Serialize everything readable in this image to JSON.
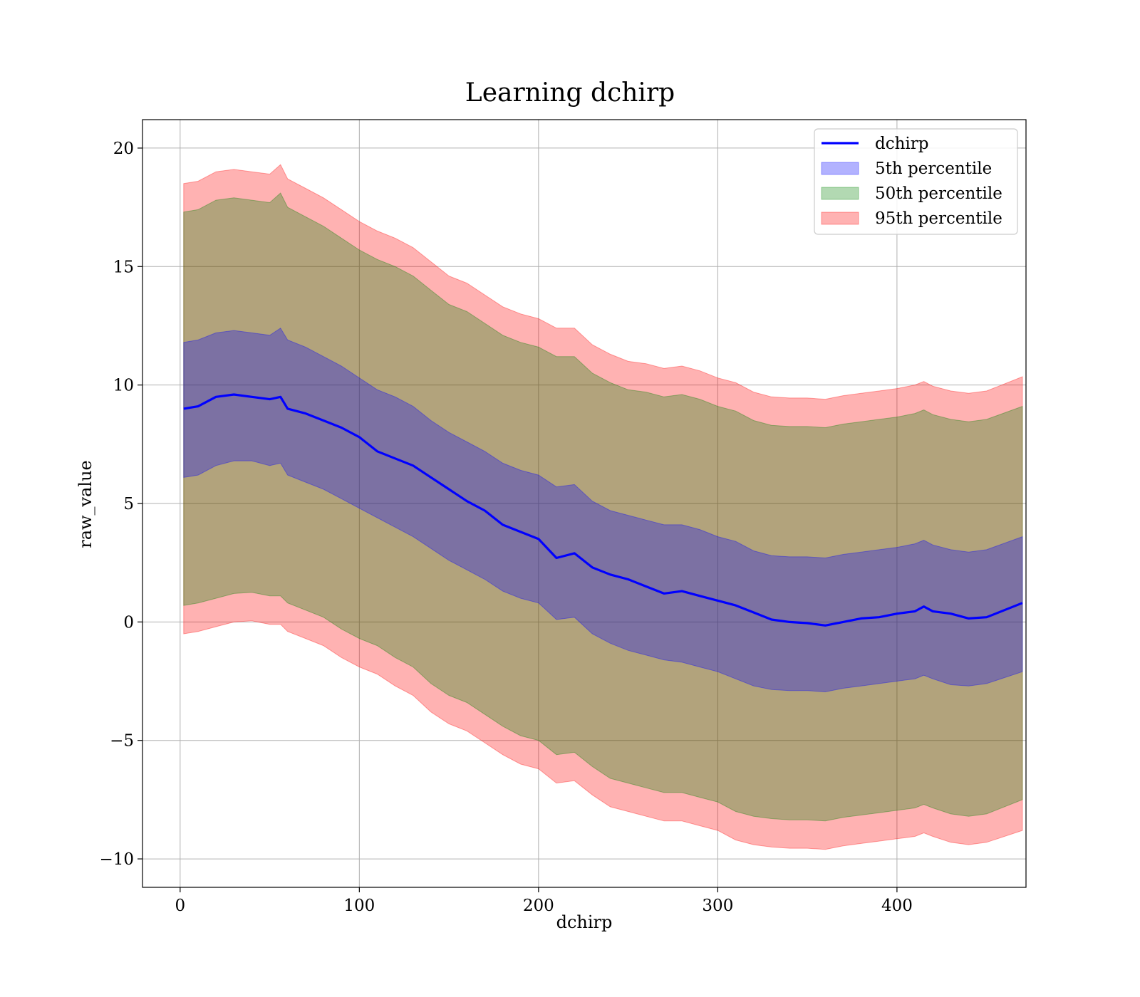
{
  "chart_data": {
    "type": "area",
    "title": "Learning dchirp",
    "xlabel": "dchirp",
    "ylabel": "raw_value",
    "xlim": [
      -21,
      472
    ],
    "ylim": [
      -11.2,
      21.2
    ],
    "x_ticks": [
      0,
      100,
      200,
      300,
      400
    ],
    "x_tick_labels": [
      "0",
      "100",
      "200",
      "300",
      "400"
    ],
    "y_ticks": [
      -10,
      -5,
      0,
      5,
      10,
      15,
      20
    ],
    "y_tick_labels": [
      "−10",
      "−5",
      "0",
      "5",
      "10",
      "15",
      "20"
    ],
    "grid": true,
    "legend_position": "top-right",
    "line": {
      "name": "dchirp",
      "color": "#0000ff",
      "x": [
        2,
        10,
        20,
        30,
        40,
        50,
        56,
        60,
        70,
        80,
        90,
        100,
        110,
        120,
        130,
        140,
        150,
        160,
        170,
        180,
        190,
        200,
        210,
        220,
        230,
        240,
        250,
        260,
        270,
        280,
        290,
        300,
        310,
        320,
        330,
        340,
        350,
        360,
        370,
        380,
        390,
        400,
        410,
        415,
        420,
        430,
        440,
        450,
        470
      ],
      "y": [
        9.0,
        9.1,
        9.5,
        9.6,
        9.5,
        9.4,
        9.5,
        9.0,
        8.8,
        8.5,
        8.2,
        7.8,
        7.2,
        6.9,
        6.6,
        6.1,
        5.6,
        5.1,
        4.7,
        4.1,
        3.8,
        3.5,
        2.7,
        2.9,
        2.3,
        2.0,
        1.8,
        1.5,
        1.2,
        1.3,
        1.1,
        0.9,
        0.7,
        0.4,
        0.1,
        0.0,
        -0.05,
        -0.15,
        0.0,
        0.15,
        0.2,
        0.35,
        0.45,
        0.65,
        0.45,
        0.35,
        0.15,
        0.2,
        0.8
      ]
    },
    "bands": [
      {
        "name": "95th percentile",
        "color": "#ff0000",
        "opacity": 0.3,
        "x": [
          2,
          10,
          20,
          30,
          40,
          50,
          56,
          60,
          70,
          80,
          90,
          100,
          110,
          120,
          130,
          140,
          150,
          160,
          170,
          180,
          190,
          200,
          210,
          220,
          230,
          240,
          250,
          260,
          270,
          280,
          290,
          300,
          310,
          320,
          330,
          340,
          350,
          360,
          370,
          380,
          390,
          400,
          410,
          415,
          420,
          430,
          440,
          450,
          470
        ],
        "upper": [
          18.5,
          18.6,
          19.0,
          19.1,
          19.0,
          18.9,
          19.3,
          18.7,
          18.3,
          17.9,
          17.4,
          16.9,
          16.5,
          16.2,
          15.8,
          15.2,
          14.6,
          14.3,
          13.8,
          13.3,
          13.0,
          12.8,
          12.4,
          12.4,
          11.7,
          11.3,
          11.0,
          10.9,
          10.7,
          10.8,
          10.6,
          10.3,
          10.1,
          9.7,
          9.5,
          9.45,
          9.45,
          9.4,
          9.55,
          9.65,
          9.75,
          9.85,
          10.0,
          10.15,
          9.95,
          9.75,
          9.65,
          9.75,
          10.35
        ],
        "lower": [
          -0.5,
          -0.4,
          -0.2,
          0.0,
          0.05,
          -0.1,
          -0.1,
          -0.4,
          -0.7,
          -1.0,
          -1.5,
          -1.9,
          -2.2,
          -2.7,
          -3.1,
          -3.8,
          -4.3,
          -4.6,
          -5.1,
          -5.6,
          -6.0,
          -6.2,
          -6.8,
          -6.7,
          -7.3,
          -7.8,
          -8.0,
          -8.2,
          -8.4,
          -8.4,
          -8.6,
          -8.8,
          -9.2,
          -9.4,
          -9.5,
          -9.55,
          -9.55,
          -9.6,
          -9.45,
          -9.35,
          -9.25,
          -9.15,
          -9.05,
          -8.9,
          -9.05,
          -9.3,
          -9.4,
          -9.3,
          -8.8
        ]
      },
      {
        "name": "50th percentile",
        "color": "#008000",
        "opacity": 0.3,
        "x": [
          2,
          10,
          20,
          30,
          40,
          50,
          56,
          60,
          70,
          80,
          90,
          100,
          110,
          120,
          130,
          140,
          150,
          160,
          170,
          180,
          190,
          200,
          210,
          220,
          230,
          240,
          250,
          260,
          270,
          280,
          290,
          300,
          310,
          320,
          330,
          340,
          350,
          360,
          370,
          380,
          390,
          400,
          410,
          415,
          420,
          430,
          440,
          450,
          470
        ],
        "upper": [
          17.3,
          17.4,
          17.8,
          17.9,
          17.8,
          17.7,
          18.1,
          17.5,
          17.1,
          16.7,
          16.2,
          15.7,
          15.3,
          15.0,
          14.6,
          14.0,
          13.4,
          13.1,
          12.6,
          12.1,
          11.8,
          11.6,
          11.2,
          11.2,
          10.5,
          10.1,
          9.8,
          9.7,
          9.5,
          9.6,
          9.4,
          9.1,
          8.9,
          8.5,
          8.3,
          8.25,
          8.25,
          8.2,
          8.35,
          8.45,
          8.55,
          8.65,
          8.8,
          8.95,
          8.75,
          8.55,
          8.45,
          8.55,
          9.1
        ],
        "lower": [
          0.7,
          0.8,
          1.0,
          1.2,
          1.25,
          1.1,
          1.1,
          0.8,
          0.5,
          0.2,
          -0.3,
          -0.7,
          -1.0,
          -1.5,
          -1.9,
          -2.6,
          -3.1,
          -3.4,
          -3.9,
          -4.4,
          -4.8,
          -5.0,
          -5.6,
          -5.5,
          -6.1,
          -6.6,
          -6.8,
          -7.0,
          -7.2,
          -7.2,
          -7.4,
          -7.6,
          -8.0,
          -8.2,
          -8.3,
          -8.35,
          -8.35,
          -8.4,
          -8.25,
          -8.15,
          -8.05,
          -7.95,
          -7.85,
          -7.7,
          -7.85,
          -8.1,
          -8.2,
          -8.1,
          -7.5
        ]
      },
      {
        "name": "5th percentile",
        "color": "#0000ff",
        "opacity": 0.3,
        "x": [
          2,
          10,
          20,
          30,
          40,
          50,
          56,
          60,
          70,
          80,
          90,
          100,
          110,
          120,
          130,
          140,
          150,
          160,
          170,
          180,
          190,
          200,
          210,
          220,
          230,
          240,
          250,
          260,
          270,
          280,
          290,
          300,
          310,
          320,
          330,
          340,
          350,
          360,
          370,
          380,
          390,
          400,
          410,
          415,
          420,
          430,
          440,
          450,
          470
        ],
        "upper": [
          11.8,
          11.9,
          12.2,
          12.3,
          12.2,
          12.1,
          12.4,
          11.9,
          11.6,
          11.2,
          10.8,
          10.3,
          9.8,
          9.5,
          9.1,
          8.5,
          8.0,
          7.6,
          7.2,
          6.7,
          6.4,
          6.2,
          5.7,
          5.8,
          5.1,
          4.7,
          4.5,
          4.3,
          4.1,
          4.1,
          3.9,
          3.6,
          3.4,
          3.0,
          2.8,
          2.75,
          2.75,
          2.7,
          2.85,
          2.95,
          3.05,
          3.15,
          3.3,
          3.45,
          3.25,
          3.05,
          2.95,
          3.05,
          3.6
        ]
      }
    ],
    "band_lower_5th": [
      6.1,
      6.2,
      6.6,
      6.8,
      6.8,
      6.6,
      6.7,
      6.2,
      5.9,
      5.6,
      5.2,
      4.8,
      4.4,
      4.0,
      3.6,
      3.1,
      2.6,
      2.2,
      1.8,
      1.3,
      1.0,
      0.8,
      0.1,
      0.2,
      -0.5,
      -0.9,
      -1.2,
      -1.4,
      -1.6,
      -1.7,
      -1.9,
      -2.1,
      -2.4,
      -2.7,
      -2.85,
      -2.9,
      -2.9,
      -2.95,
      -2.8,
      -2.7,
      -2.6,
      -2.5,
      -2.4,
      -2.25,
      -2.4,
      -2.65,
      -2.7,
      -2.6,
      -2.1
    ],
    "legend": {
      "entries": [
        {
          "label": "dchirp",
          "kind": "line",
          "color": "#0000ff"
        },
        {
          "label": "5th percentile",
          "kind": "patch",
          "color": "#0000ff"
        },
        {
          "label": "50th percentile",
          "kind": "patch",
          "color": "#008000"
        },
        {
          "label": "95th percentile",
          "kind": "patch",
          "color": "#ff0000"
        }
      ]
    }
  }
}
